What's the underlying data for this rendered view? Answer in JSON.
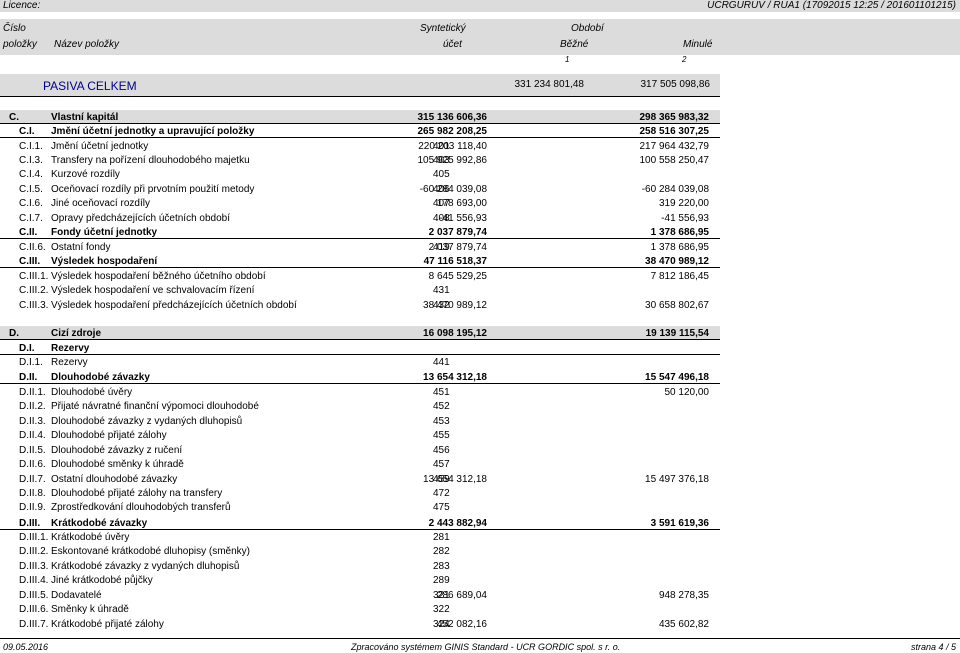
{
  "header": {
    "licence_label": "Licence:",
    "report_info": "UCRGURUV / RUA1  (17092015 12:25 / 201601101215)"
  },
  "columns": {
    "cislo": "Číslo",
    "polozky": "položky",
    "nazev": "Název položky",
    "synteticky": "Syntetický",
    "ucet": "účet",
    "obdobi": "Období",
    "bezne": "Běžné",
    "minule": "Minulé",
    "num1": "1",
    "num2": "2"
  },
  "total": {
    "label": "PASIVA CELKEM",
    "current": "331 234 801,48",
    "previous": "317 505 098,86"
  },
  "rows": [
    {
      "code": "C.",
      "name": "Vlastní kapitál",
      "acc": "",
      "cur": "315 136 606,36",
      "prev": "298 365 983,32",
      "style": "section"
    },
    {
      "code": "C.I.",
      "name": "Jmění účetní jednotky a upravující položky",
      "acc": "",
      "cur": "265 982 208,25",
      "prev": "258 516 307,25",
      "style": "group"
    },
    {
      "code": "C.I.1.",
      "name": "Jmění účetní jednotky",
      "acc": "401",
      "cur": "220 203 118,40",
      "prev": "217 964 432,79",
      "style": ""
    },
    {
      "code": "C.I.3.",
      "name": "Transfery na pořízení dlouhodobého majetku",
      "acc": "403",
      "cur": "105 925 992,86",
      "prev": "100 558 250,47",
      "style": ""
    },
    {
      "code": "C.I.4.",
      "name": "Kurzové rozdíly",
      "acc": "405",
      "cur": "",
      "prev": "",
      "style": ""
    },
    {
      "code": "C.I.5.",
      "name": "Oceňovací rozdíly při prvotním použití metody",
      "acc": "406",
      "cur": "-60 284 039,08",
      "prev": "-60 284 039,08",
      "style": ""
    },
    {
      "code": "C.I.6.",
      "name": "Jiné oceňovací rozdíly",
      "acc": "407",
      "cur": "178 693,00",
      "prev": "319 220,00",
      "style": ""
    },
    {
      "code": "C.I.7.",
      "name": "Opravy předcházejících účetních období",
      "acc": "408",
      "cur": "-41 556,93",
      "prev": "-41 556,93",
      "style": ""
    },
    {
      "code": "C.II.",
      "name": "Fondy účetní jednotky",
      "acc": "",
      "cur": "2 037 879,74",
      "prev": "1 378 686,95",
      "style": "group"
    },
    {
      "code": "C.II.6.",
      "name": "Ostatní fondy",
      "acc": "419",
      "cur": "2 037 879,74",
      "prev": "1 378 686,95",
      "style": ""
    },
    {
      "code": "C.III.",
      "name": "Výsledek hospodaření",
      "acc": "",
      "cur": "47 116 518,37",
      "prev": "38 470 989,12",
      "style": "group"
    },
    {
      "code": "C.III.1.",
      "name": "Výsledek hospodaření běžného účetního období",
      "acc": "",
      "cur": "8 645 529,25",
      "prev": "7 812 186,45",
      "style": ""
    },
    {
      "code": "C.III.2.",
      "name": "Výsledek hospodaření ve schvalovacím řízení",
      "acc": "431",
      "cur": "",
      "prev": "",
      "style": ""
    },
    {
      "code": "C.III.3.",
      "name": "Výsledek hospodaření předcházejících účetních období",
      "acc": "432",
      "cur": "38 470 989,12",
      "prev": "30 658 802,67",
      "style": ""
    },
    {
      "code": "D.",
      "name": "Cizí zdroje",
      "acc": "",
      "cur": "16 098 195,12",
      "prev": "19 139 115,54",
      "style": "section"
    },
    {
      "code": "D.I.",
      "name": "Rezervy",
      "acc": "",
      "cur": "",
      "prev": "",
      "style": "group"
    },
    {
      "code": "D.I.1.",
      "name": "Rezervy",
      "acc": "441",
      "cur": "",
      "prev": "",
      "style": ""
    },
    {
      "code": "D.II.",
      "name": "Dlouhodobé závazky",
      "acc": "",
      "cur": "13 654 312,18",
      "prev": "15 547 496,18",
      "style": "group"
    },
    {
      "code": "D.II.1.",
      "name": "Dlouhodobé úvěry",
      "acc": "451",
      "cur": "",
      "prev": "50 120,00",
      "style": ""
    },
    {
      "code": "D.II.2.",
      "name": "Přijaté návratné finanční výpomoci dlouhodobé",
      "acc": "452",
      "cur": "",
      "prev": "",
      "style": ""
    },
    {
      "code": "D.II.3.",
      "name": "Dlouhodobé závazky z vydaných dluhopisů",
      "acc": "453",
      "cur": "",
      "prev": "",
      "style": ""
    },
    {
      "code": "D.II.4.",
      "name": "Dlouhodobé přijaté zálohy",
      "acc": "455",
      "cur": "",
      "prev": "",
      "style": ""
    },
    {
      "code": "D.II.5.",
      "name": "Dlouhodobé závazky z ručení",
      "acc": "456",
      "cur": "",
      "prev": "",
      "style": ""
    },
    {
      "code": "D.II.6.",
      "name": "Dlouhodobé směnky k úhradě",
      "acc": "457",
      "cur": "",
      "prev": "",
      "style": ""
    },
    {
      "code": "D.II.7.",
      "name": "Ostatní dlouhodobé závazky",
      "acc": "459",
      "cur": "13 654 312,18",
      "prev": "15 497 376,18",
      "style": ""
    },
    {
      "code": "D.II.8.",
      "name": "Dlouhodobé přijaté zálohy na transfery",
      "acc": "472",
      "cur": "",
      "prev": "",
      "style": ""
    },
    {
      "code": "D.II.9.",
      "name": "Zprostředkování dlouhodobých transferů",
      "acc": "475",
      "cur": "",
      "prev": "",
      "style": ""
    },
    {
      "code": "D.III.",
      "name": "Krátkodobé závazky",
      "acc": "",
      "cur": "2 443 882,94",
      "prev": "3 591 619,36",
      "style": "group"
    },
    {
      "code": "D.III.1.",
      "name": "Krátkodobé úvěry",
      "acc": "281",
      "cur": "",
      "prev": "",
      "style": ""
    },
    {
      "code": "D.III.2.",
      "name": "Eskontované krátkodobé dluhopisy (směnky)",
      "acc": "282",
      "cur": "",
      "prev": "",
      "style": ""
    },
    {
      "code": "D.III.3.",
      "name": "Krátkodobé závazky z vydaných dluhopisů",
      "acc": "283",
      "cur": "",
      "prev": "",
      "style": ""
    },
    {
      "code": "D.III.4.",
      "name": "Jiné krátkodobé půjčky",
      "acc": "289",
      "cur": "",
      "prev": "",
      "style": ""
    },
    {
      "code": "D.III.5.",
      "name": "Dodavatelé",
      "acc": "321",
      "cur": "286 689,04",
      "prev": "948 278,35",
      "style": ""
    },
    {
      "code": "D.III.6.",
      "name": "Směnky k úhradě",
      "acc": "322",
      "cur": "",
      "prev": "",
      "style": ""
    },
    {
      "code": "D.III.7.",
      "name": "Krátkodobé přijaté zálohy",
      "acc": "324",
      "cur": "452 082,16",
      "prev": "435 602,82",
      "style": ""
    }
  ],
  "footer": {
    "date": "09.05.2016",
    "system": "Zpracováno systémem GINIS Standard - UCR GORDIC spol. s  r. o.",
    "page": "strana 4 / 5"
  }
}
